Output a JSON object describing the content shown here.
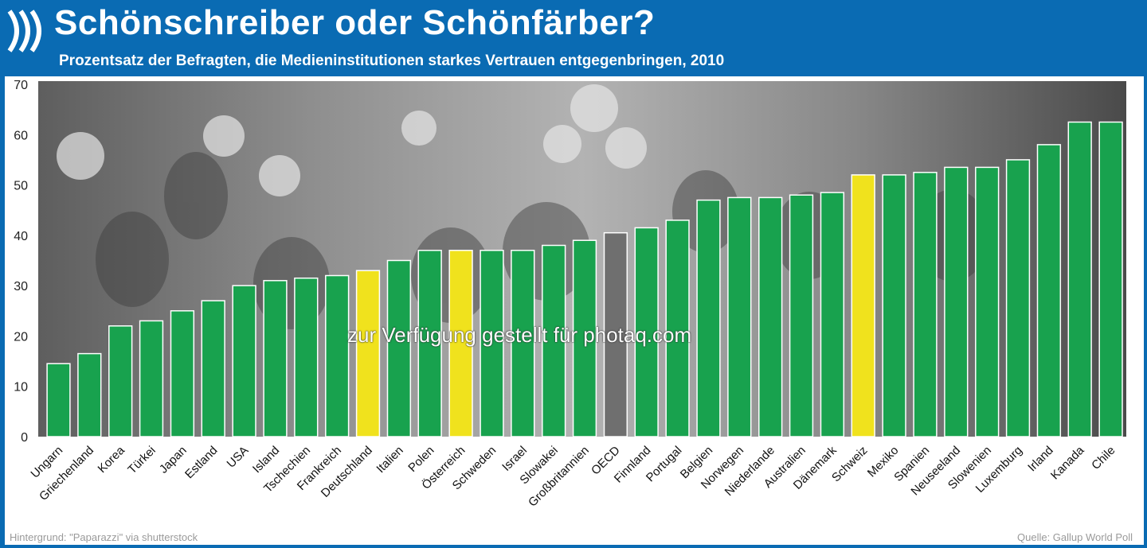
{
  "header": {
    "title": "Schönschreiber oder Schönfärber?",
    "subtitle": "Prozentsatz der Befragten, die Medieninstitutionen starkes Vertrauen entgegenbringen, 2010"
  },
  "footer": {
    "credit": "Hintergrund: \"Paparazzi\" via shutterstock",
    "source": "Quelle: Gallup World Poll",
    "watermark": "zur Verfügung gestellt für photaq.com"
  },
  "colors": {
    "bar": "#18a24e",
    "highlight": "#f0e21d",
    "oecd": "#6f6f6f",
    "header": "#0a6bb3"
  },
  "chart_data": {
    "type": "bar",
    "title": "Schönschreiber oder Schönfärber?",
    "subtitle": "Prozentsatz der Befragten, die Medieninstitutionen starkes Vertrauen entgegenbringen, 2010",
    "xlabel": "",
    "ylabel": "",
    "ylim": [
      0,
      70
    ],
    "yticks": [
      0,
      10,
      20,
      30,
      40,
      50,
      60,
      70
    ],
    "grid": false,
    "categories": [
      "Ungarn",
      "Griechenland",
      "Korea",
      "Türkei",
      "Japan",
      "Estland",
      "USA",
      "Island",
      "Tschechien",
      "Frankreich",
      "Deutschland",
      "Italien",
      "Polen",
      "Österreich",
      "Schweden",
      "Israel",
      "Slowakei",
      "Großbritannien",
      "OECD",
      "Finnland",
      "Portugal",
      "Belgien",
      "Norwegen",
      "Niederlande",
      "Australien",
      "Dänemark",
      "Schweiz",
      "Mexiko",
      "Spanien",
      "Neuseeland",
      "Slowenien",
      "Luxemburg",
      "Irland",
      "Kanada",
      "Chile"
    ],
    "values": [
      14.5,
      16.5,
      22,
      23,
      25,
      27,
      30,
      31,
      31.5,
      32,
      33,
      35,
      37,
      37,
      37,
      37,
      38,
      39,
      40.5,
      41.5,
      43,
      47,
      47.5,
      47.5,
      48,
      48.5,
      52,
      52,
      52.5,
      53.5,
      53.5,
      55,
      58,
      62.5,
      62.5
    ],
    "highlighted": [
      "Deutschland",
      "Österreich",
      "Schweiz"
    ],
    "reference": [
      "OECD"
    ]
  }
}
